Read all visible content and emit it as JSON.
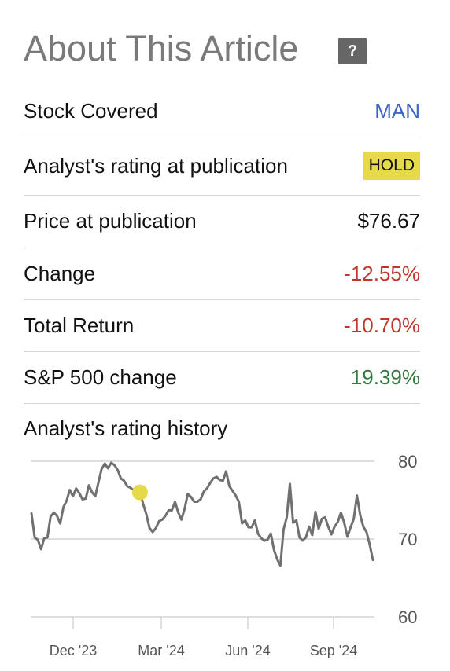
{
  "header": {
    "title": "About This Article",
    "help_icon_label": "?"
  },
  "rows": [
    {
      "label": "Stock Covered",
      "value": "MAN"
    },
    {
      "label": "Analyst's rating at publication",
      "value": "HOLD"
    },
    {
      "label": "Price at publication",
      "value": "$76.67"
    },
    {
      "label": "Change",
      "value": "-12.55%"
    },
    {
      "label": "Total Return",
      "value": "-10.70%"
    },
    {
      "label": "S&P 500 change",
      "value": "19.39%"
    }
  ],
  "history": {
    "label": "Analyst's rating history"
  },
  "colors": {
    "link": "#3b66c9",
    "negative": "#c2352f",
    "positive": "#2f7a3c",
    "hold_badge": "#e6d94a",
    "line": "#707070",
    "marker": "#e6d94a"
  },
  "chart_data": {
    "type": "line",
    "x_ticks": [
      "Dec '23",
      "Mar '24",
      "Jun '24",
      "Sep '24"
    ],
    "y_ticks": [
      80,
      70,
      60
    ],
    "ylim": [
      60,
      80
    ],
    "grid": true,
    "series": [
      {
        "values": [
          73.3,
          70.2,
          69.9,
          68.7,
          70.1,
          70.2,
          72.9,
          73.4,
          73.0,
          72.0,
          74.1,
          74.9,
          76.3,
          75.5,
          76.5,
          75.9,
          75.1,
          75.2,
          76.9,
          76.0,
          75.5,
          77.3,
          79.0,
          79.7,
          79.1,
          79.8,
          79.5,
          78.9,
          77.8,
          77.5,
          76.8,
          76.6,
          76.3,
          76.2,
          76.0,
          74.5,
          73.2,
          71.4,
          70.9,
          71.4,
          72.3,
          72.5,
          73.0,
          73.7,
          73.7,
          74.8,
          73.4,
          72.5,
          73.9,
          75.8,
          75.4,
          74.8,
          74.8,
          75.1,
          76.1,
          76.5,
          77.2,
          77.8,
          78.0,
          77.6,
          77.5,
          78.7,
          76.8,
          76.2,
          75.6,
          74.8,
          72.0,
          72.4,
          71.5,
          71.5,
          72.4,
          70.7,
          70.1,
          69.8,
          69.9,
          70.7,
          68.6,
          67.4,
          66.6,
          71.2,
          72.8,
          77.1,
          72.1,
          72.4,
          70.2,
          69.8,
          70.2,
          71.6,
          70.5,
          73.5,
          71.3,
          72.6,
          72.8,
          71.6,
          70.6,
          71.6,
          72.2,
          73.4,
          72.1,
          70.3,
          71.5,
          72.6,
          75.6,
          73.1,
          71.6,
          70.9,
          69.3,
          67.3
        ],
        "markers": [
          {
            "x_index": 34,
            "y": 76.0
          }
        ]
      }
    ]
  }
}
